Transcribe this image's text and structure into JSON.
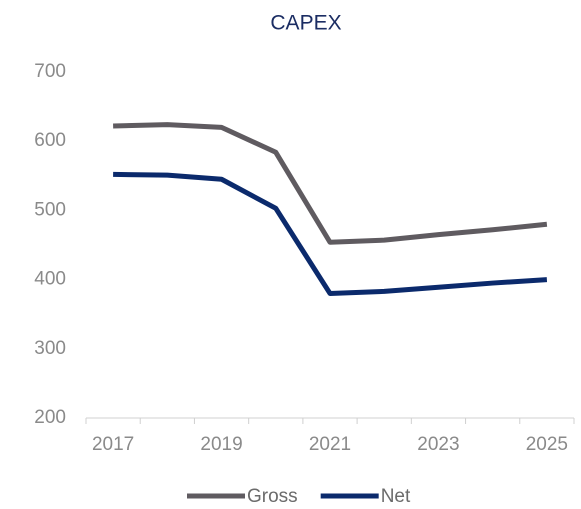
{
  "chart_data": {
    "type": "line",
    "title": "CAPEX",
    "categories": [
      "2017",
      null,
      "2019",
      null,
      "2021",
      null,
      "2023",
      null,
      "2025"
    ],
    "series": [
      {
        "name": "Gross",
        "color": "#5f5b60",
        "values": [
          622,
          624,
          620,
          584,
          454,
          457,
          465,
          472,
          480
        ]
      },
      {
        "name": "Net",
        "color": "#0b2a6c",
        "values": [
          552,
          551,
          545,
          503,
          380,
          383,
          389,
          395,
          400
        ]
      }
    ],
    "ylim": [
      200,
      700
    ],
    "yticks": [
      200,
      300,
      400,
      500,
      600,
      700
    ],
    "grid": false,
    "legend": "bottom"
  }
}
